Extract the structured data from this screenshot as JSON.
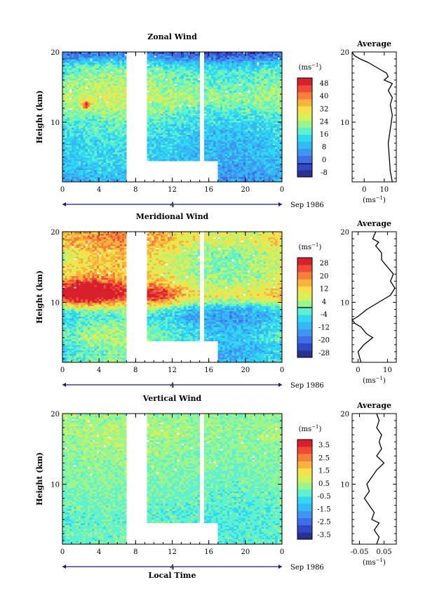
{
  "colors": {
    "scale": [
      "#2b2f8f",
      "#2f49c6",
      "#3f6fe6",
      "#3d97f0",
      "#34b9f4",
      "#31d8f2",
      "#5ef0cf",
      "#9bf58f",
      "#d4f05c",
      "#f7e04a",
      "#f8b33f",
      "#f6803a",
      "#ee4a36",
      "#d8202c"
    ],
    "background": "#ffffff",
    "line": "#000000"
  },
  "chart_data": [
    {
      "type": "heatmap",
      "title": "Zonal Wind",
      "xlabel": "",
      "ylabel": "Height (km)",
      "x_range": [
        0,
        24
      ],
      "y_range": [
        1.5,
        20
      ],
      "x_ticks": [
        "0",
        "4",
        "8",
        "12",
        "16",
        "20",
        "0"
      ],
      "y_ticks": [
        "10",
        "20"
      ],
      "date_label": "Sep 1986",
      "day_marker": "4",
      "colorbar": {
        "unit": "(ms",
        "unit_exp": "−1",
        "levels": [
          "48",
          "40",
          "32",
          "24",
          "16",
          "8",
          "0",
          "-8"
        ],
        "vmin": -8,
        "vmax": 52,
        "zero_line": 0
      },
      "data_gaps_hours": [
        [
          7,
          9.3
        ],
        [
          15,
          15.5
        ]
      ],
      "low_gap_hours": [
        9.3,
        17
      ],
      "low_gap_top_km": 4.5,
      "field": {
        "profile": [
          [
            1.5,
            9
          ],
          [
            3,
            11
          ],
          [
            5,
            13
          ],
          [
            7,
            14
          ],
          [
            9,
            16
          ],
          [
            11,
            20
          ],
          [
            12.5,
            24
          ],
          [
            13.5,
            26
          ],
          [
            15,
            24
          ],
          [
            16.5,
            22
          ],
          [
            17.5,
            20
          ],
          [
            18.5,
            14
          ],
          [
            19,
            8
          ],
          [
            19.5,
            4
          ],
          [
            20,
            2
          ]
        ],
        "noise": 5,
        "diurnal_amp": 3,
        "bands": [
          {
            "hour": 2.5,
            "height": 12.5,
            "dh": 0.5,
            "dz": 0.6,
            "amp": 22
          }
        ]
      }
    },
    {
      "type": "heatmap",
      "title": "Meridional Wind",
      "xlabel": "",
      "ylabel": "Height (km)",
      "x_range": [
        0,
        24
      ],
      "y_range": [
        1.5,
        20
      ],
      "x_ticks": [
        "0",
        "4",
        "8",
        "12",
        "16",
        "20",
        "0"
      ],
      "y_ticks": [
        "10",
        "20"
      ],
      "date_label": "Sep 1986",
      "day_marker": "4",
      "colorbar": {
        "unit": "(ms",
        "unit_exp": "−1",
        "levels": [
          "28",
          "20",
          "12",
          "4",
          "-4",
          "-12",
          "-20",
          "-28"
        ],
        "vmin": -28,
        "vmax": 28,
        "zero_line": 0
      },
      "data_gaps_hours": [
        [
          7,
          9.3
        ],
        [
          15,
          15.5
        ]
      ],
      "low_gap_hours": [
        9.3,
        17
      ],
      "low_gap_top_km": 4.5,
      "field": {
        "profile": [
          [
            1.5,
            -4
          ],
          [
            3,
            -6
          ],
          [
            5,
            -2
          ],
          [
            6.5,
            -4
          ],
          [
            8,
            -8
          ],
          [
            9,
            -5
          ],
          [
            10,
            6
          ],
          [
            11,
            14
          ],
          [
            12,
            12
          ],
          [
            13,
            8
          ],
          [
            14.5,
            6
          ],
          [
            16,
            7
          ],
          [
            17,
            6
          ],
          [
            18,
            10
          ],
          [
            19,
            12
          ],
          [
            20,
            11
          ]
        ],
        "noise": 5,
        "diurnal_amp": 6,
        "bands": [
          {
            "hour": 2,
            "height": 11.5,
            "dh": 4,
            "dz": 2,
            "amp": 18
          },
          {
            "hour": 10.5,
            "height": 11,
            "dh": 2,
            "dz": 1.5,
            "amp": 10
          }
        ]
      }
    },
    {
      "type": "heatmap",
      "title": "Vertical Wind",
      "xlabel": "Local Time",
      "ylabel": "Height (km)",
      "x_range": [
        0,
        24
      ],
      "y_range": [
        1.5,
        20
      ],
      "x_ticks": [
        "0",
        "4",
        "8",
        "12",
        "16",
        "20",
        "0"
      ],
      "y_ticks": [
        "10",
        "20"
      ],
      "date_label": "Sep 1986",
      "day_marker": "4",
      "colorbar": {
        "unit": "(ms",
        "unit_exp": "−1",
        "levels": [
          "3.5",
          "2.5",
          "1.5",
          "0.5",
          "-0.5",
          "-1.5",
          "-2.5",
          "-3.5"
        ],
        "vmin": -3.5,
        "vmax": 3.5,
        "zero_line": null
      },
      "data_gaps_hours": [
        [
          7,
          9.3
        ],
        [
          15,
          15.5
        ]
      ],
      "low_gap_hours": [
        9.3,
        17
      ],
      "low_gap_top_km": 4.5,
      "field": {
        "profile": [
          [
            1.5,
            -0.2
          ],
          [
            5,
            -0.3
          ],
          [
            9,
            -0.1
          ],
          [
            13,
            0.1
          ],
          [
            15,
            0.2
          ],
          [
            17,
            0.3
          ],
          [
            20,
            0.2
          ]
        ],
        "noise": 0.4,
        "diurnal_amp": 0.1,
        "bands": []
      }
    }
  ],
  "averages": [
    {
      "type": "line",
      "title": "Average",
      "xlabel": "(ms",
      "xlabel_exp": "−1",
      "x_range": [
        -6,
        16
      ],
      "x_ticks": [
        {
          "value": 0,
          "label": "0"
        },
        {
          "value": 10,
          "label": "10"
        }
      ],
      "y_range": [
        1.5,
        20
      ],
      "y_ticks": [
        "10",
        "20"
      ],
      "points": [
        [
          14,
          1.5
        ],
        [
          13,
          3
        ],
        [
          12.5,
          5
        ],
        [
          12,
          7
        ],
        [
          13,
          9
        ],
        [
          14,
          11
        ],
        [
          13,
          12.5
        ],
        [
          14,
          13.5
        ],
        [
          12,
          14.5
        ],
        [
          14,
          15.5
        ],
        [
          10,
          16
        ],
        [
          12,
          16.5
        ],
        [
          11,
          17
        ],
        [
          8,
          17.5
        ],
        [
          5,
          18
        ],
        [
          2,
          18.5
        ],
        [
          -2,
          19
        ],
        [
          -5,
          19.5
        ],
        [
          -6,
          20
        ]
      ]
    },
    {
      "type": "line",
      "title": "Average",
      "xlabel": "(ms",
      "xlabel_exp": "−1",
      "x_range": [
        -2,
        13
      ],
      "x_ticks": [
        {
          "value": 0,
          "label": "0"
        },
        {
          "value": 10,
          "label": "10"
        }
      ],
      "y_range": [
        1.5,
        20
      ],
      "y_ticks": [
        "10",
        "20"
      ],
      "points": [
        [
          1,
          1.5
        ],
        [
          0,
          3
        ],
        [
          2,
          4
        ],
        [
          5,
          5
        ],
        [
          3,
          5.5
        ],
        [
          1,
          6.5
        ],
        [
          -1,
          7
        ],
        [
          -2,
          7.5
        ],
        [
          0,
          8
        ],
        [
          3,
          9
        ],
        [
          7,
          10
        ],
        [
          11,
          11
        ],
        [
          12.5,
          12
        ],
        [
          11,
          13
        ],
        [
          12,
          14
        ],
        [
          10,
          15
        ],
        [
          8,
          16
        ],
        [
          8,
          17
        ],
        [
          6,
          18
        ],
        [
          7,
          18.5
        ],
        [
          5,
          19
        ],
        [
          6,
          20
        ]
      ]
    },
    {
      "type": "line",
      "title": "Average",
      "xlabel": "(ms",
      "xlabel_exp": "−1",
      "x_range": [
        -0.08,
        0.1
      ],
      "x_ticks": [
        {
          "value": -0.05,
          "label": "-0.05"
        },
        {
          "value": 0.05,
          "label": "0.05"
        }
      ],
      "y_range": [
        1.5,
        20
      ],
      "y_ticks": [
        "10",
        "20"
      ],
      "points": [
        [
          0.02,
          1.5
        ],
        [
          0.03,
          2.5
        ],
        [
          0.01,
          3.5
        ],
        [
          0.03,
          4.5
        ],
        [
          0.0,
          5
        ],
        [
          0.01,
          6
        ],
        [
          -0.01,
          7
        ],
        [
          -0.03,
          8
        ],
        [
          -0.01,
          9
        ],
        [
          -0.02,
          10
        ],
        [
          0.0,
          11
        ],
        [
          0.02,
          12
        ],
        [
          0.05,
          13
        ],
        [
          0.02,
          14
        ],
        [
          0.04,
          15
        ],
        [
          0.03,
          16
        ],
        [
          0.04,
          17
        ],
        [
          0.02,
          18
        ],
        [
          0.03,
          19
        ],
        [
          0.02,
          20
        ]
      ]
    }
  ]
}
